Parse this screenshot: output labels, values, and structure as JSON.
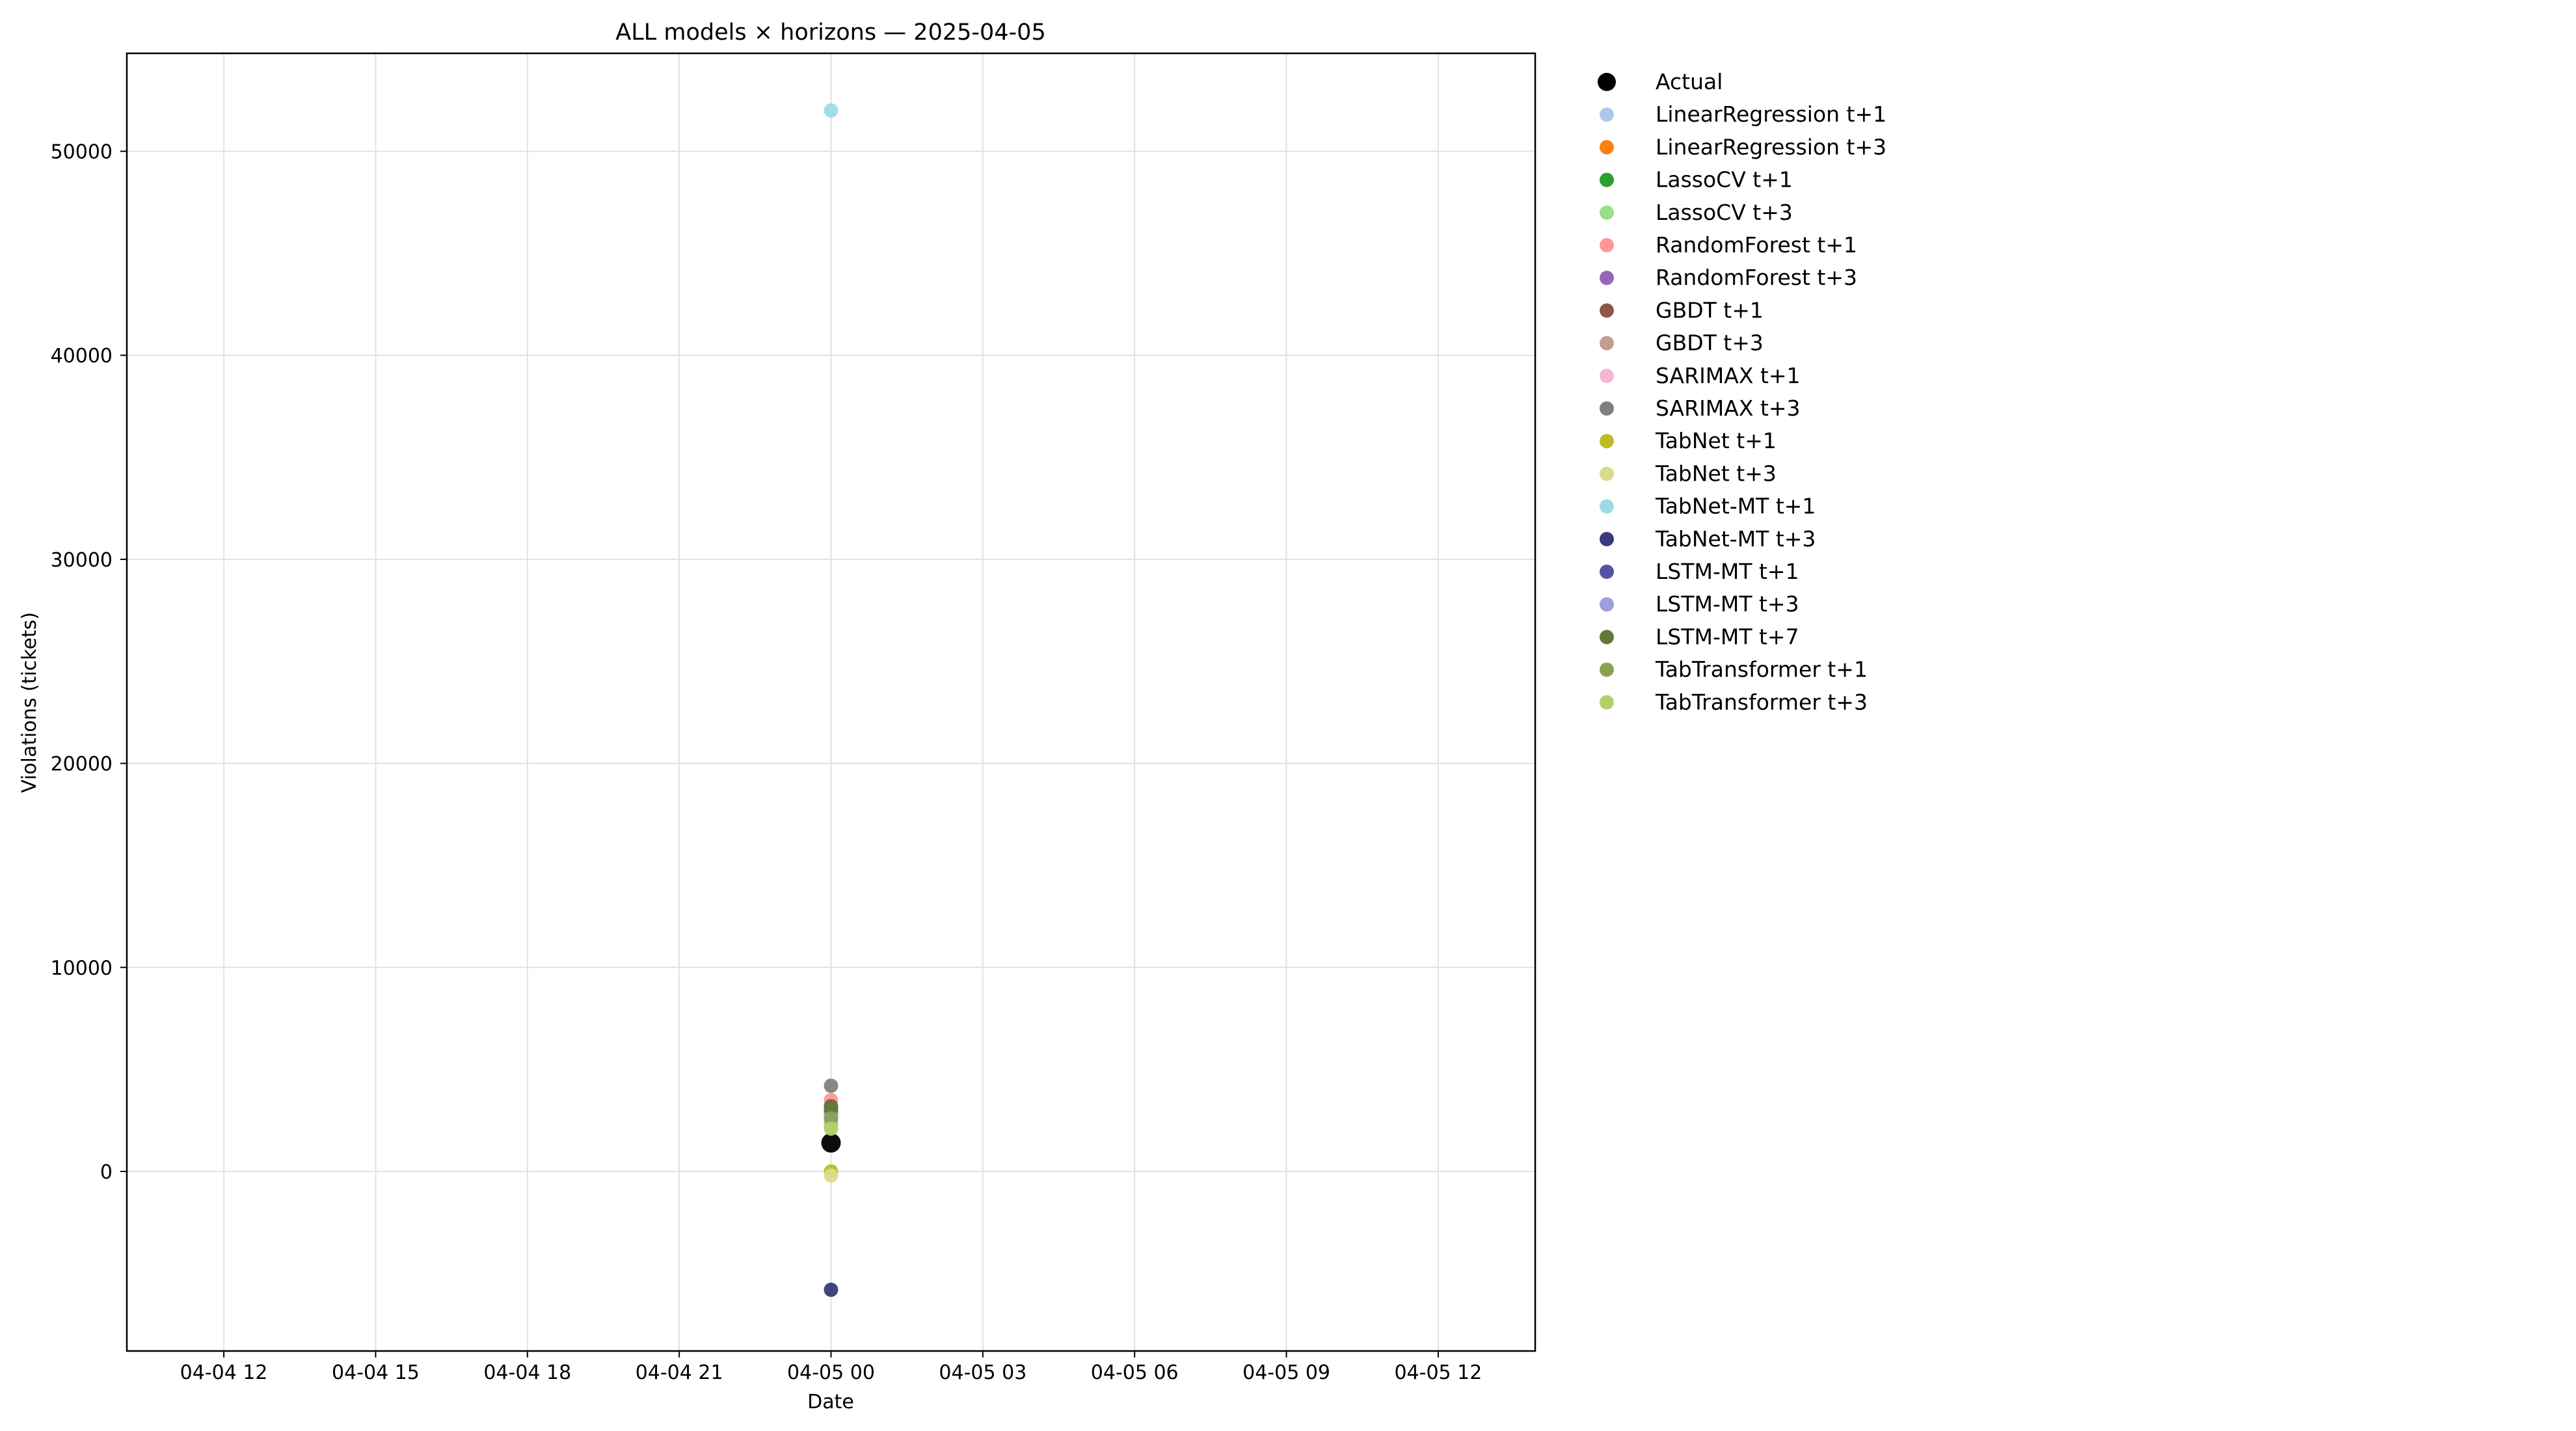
{
  "chart_data": {
    "type": "scatter",
    "title": "ALL models × horizons — 2025-04-05",
    "xlabel": "Date",
    "ylabel": "Violations (tickets)",
    "grid": true,
    "legend_placement": "outside-right-top",
    "xlim": [
      "2025-04-04 10:05",
      "2025-04-05 13:55"
    ],
    "ylim": [
      -8800,
      54800
    ],
    "x_ticks": [
      {
        "value": "2025-04-04 12:00",
        "label": "04-04 12"
      },
      {
        "value": "2025-04-04 15:00",
        "label": "04-04 15"
      },
      {
        "value": "2025-04-04 18:00",
        "label": "04-04 18"
      },
      {
        "value": "2025-04-04 21:00",
        "label": "04-04 21"
      },
      {
        "value": "2025-04-05 00:00",
        "label": "04-05 00"
      },
      {
        "value": "2025-04-05 03:00",
        "label": "04-05 03"
      },
      {
        "value": "2025-04-05 06:00",
        "label": "04-05 06"
      },
      {
        "value": "2025-04-05 09:00",
        "label": "04-05 09"
      },
      {
        "value": "2025-04-05 12:00",
        "label": "04-05 12"
      }
    ],
    "y_ticks": [
      {
        "value": 0,
        "label": "0"
      },
      {
        "value": 10000,
        "label": "10000"
      },
      {
        "value": 20000,
        "label": "20000"
      },
      {
        "value": 30000,
        "label": "30000"
      },
      {
        "value": 40000,
        "label": "40000"
      },
      {
        "value": 50000,
        "label": "50000"
      }
    ],
    "series": [
      {
        "name": "Actual",
        "color": "#000000",
        "x": "2025-04-05 00:00",
        "y": 1400
      },
      {
        "name": "LinearRegression t+1",
        "color": "#aec7e8",
        "x": "2025-04-05 00:00",
        "y": 2500
      },
      {
        "name": "LinearRegression t+3",
        "color": "#ff7f0e",
        "x": "2025-04-05 00:00",
        "y": 2300
      },
      {
        "name": "LassoCV t+1",
        "color": "#2ca02c",
        "x": "2025-04-05 00:00",
        "y": 2600
      },
      {
        "name": "LassoCV t+3",
        "color": "#98df8a",
        "x": "2025-04-05 00:00",
        "y": 2400
      },
      {
        "name": "RandomForest t+1",
        "color": "#ff9896",
        "x": "2025-04-05 00:00",
        "y": 3500
      },
      {
        "name": "RandomForest t+3",
        "color": "#9467bd",
        "x": "2025-04-05 00:00",
        "y": 3000
      },
      {
        "name": "GBDT t+1",
        "color": "#8c564b",
        "x": "2025-04-05 00:00",
        "y": 3200
      },
      {
        "name": "GBDT t+3",
        "color": "#c49c94",
        "x": "2025-04-05 00:00",
        "y": 2900
      },
      {
        "name": "SARIMAX t+1",
        "color": "#f7b6d2",
        "x": "2025-04-05 00:00",
        "y": 2700
      },
      {
        "name": "SARIMAX t+3",
        "color": "#7f7f7f",
        "x": "2025-04-05 00:00",
        "y": 4200
      },
      {
        "name": "TabNet t+1",
        "color": "#bcbd22",
        "x": "2025-04-05 00:00",
        "y": 0
      },
      {
        "name": "TabNet t+3",
        "color": "#dbdb8d",
        "x": "2025-04-05 00:00",
        "y": -200
      },
      {
        "name": "TabNet-MT t+1",
        "color": "#9edae5",
        "x": "2025-04-05 00:00",
        "y": 52000
      },
      {
        "name": "TabNet-MT t+3",
        "color": "#393b79",
        "x": "2025-04-05 00:00",
        "y": -5800
      },
      {
        "name": "LSTM-MT t+1",
        "color": "#5254a3",
        "x": "2025-04-05 00:00",
        "y": 2900
      },
      {
        "name": "LSTM-MT t+3",
        "color": "#9c9ede",
        "x": "2025-04-05 00:00",
        "y": 2750
      },
      {
        "name": "LSTM-MT t+7",
        "color": "#637939",
        "x": "2025-04-05 00:00",
        "y": 3100
      },
      {
        "name": "TabTransformer t+1",
        "color": "#8ca252",
        "x": "2025-04-05 00:00",
        "y": 2600
      },
      {
        "name": "TabTransformer t+3",
        "color": "#b5cf6b",
        "x": "2025-04-05 00:00",
        "y": 2100
      }
    ]
  }
}
